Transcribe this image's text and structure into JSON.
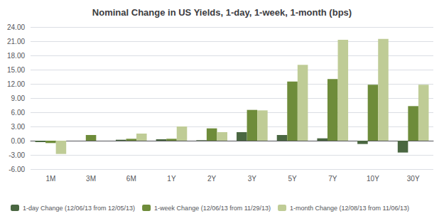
{
  "chart_data": {
    "type": "bar",
    "title": "Nominal Change in US Yields, 1-day, 1-week, 1-month (bps)",
    "categories": [
      "1M",
      "3M",
      "6M",
      "1Y",
      "2Y",
      "3Y",
      "5Y",
      "7Y",
      "10Y",
      "30Y"
    ],
    "series": [
      {
        "name": "1-day Change (12/06/13 from 12/05/13)",
        "color": "#4a6741",
        "values": [
          -0.3,
          0.0,
          0.2,
          0.3,
          0.1,
          1.8,
          1.2,
          0.5,
          -0.7,
          -2.5
        ]
      },
      {
        "name": "1-week Change (12/06/13 from 11/29/13)",
        "color": "#6e8c3a",
        "values": [
          -0.5,
          1.2,
          0.4,
          0.4,
          2.6,
          6.5,
          12.5,
          13.0,
          11.8,
          7.3
        ]
      },
      {
        "name": "1-month Change (12/08/13 from 11/06/13)",
        "color": "#bfcc96",
        "values": [
          -2.8,
          0.0,
          1.5,
          3.0,
          1.8,
          6.4,
          16.0,
          21.3,
          21.5,
          11.8
        ]
      }
    ],
    "ylim": [
      -6.0,
      24.0
    ],
    "yticks": [
      {
        "value": -6.0,
        "label": "-6.00"
      },
      {
        "value": -3.0,
        "label": "-3.00"
      },
      {
        "value": 0.0,
        "label": "0.00"
      },
      {
        "value": 3.0,
        "label": "3.00"
      },
      {
        "value": 6.0,
        "label": "6.00"
      },
      {
        "value": 9.0,
        "label": "9.00"
      },
      {
        "value": 12.0,
        "label": "12.00"
      },
      {
        "value": 15.0,
        "label": "15.00"
      },
      {
        "value": 18.0,
        "label": "18.00"
      },
      {
        "value": 21.0,
        "label": "21.00"
      },
      {
        "value": 24.0,
        "label": "24.00"
      }
    ],
    "grid": true,
    "legend": "lower left"
  }
}
